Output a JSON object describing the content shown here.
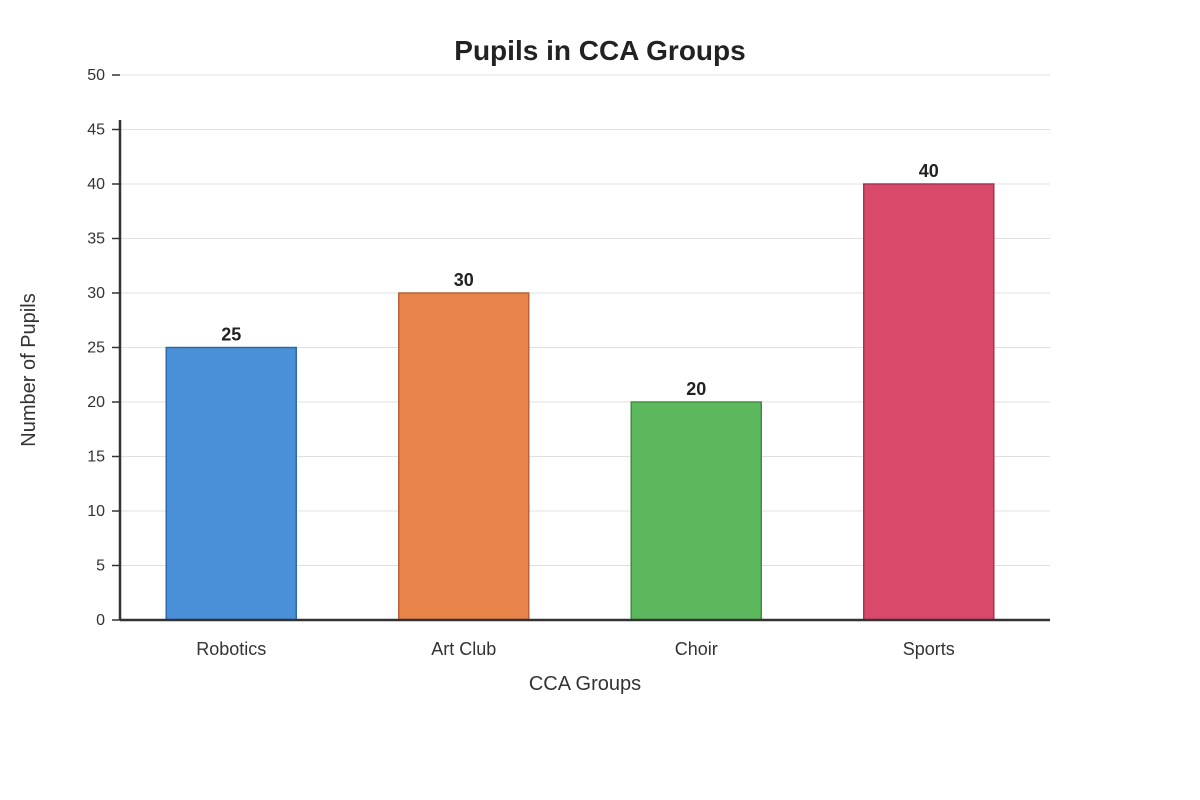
{
  "chart_data": {
    "type": "bar",
    "title": "Pupils in CCA Groups",
    "xlabel": "CCA Groups",
    "ylabel": "Number of Pupils",
    "categories": [
      "Robotics",
      "Art Club",
      "Choir",
      "Sports"
    ],
    "values": [
      25,
      30,
      20,
      40
    ],
    "data_labels": [
      "25",
      "30",
      "20",
      "40"
    ],
    "ylim": [
      0,
      50
    ],
    "yticks": [
      0,
      5,
      10,
      15,
      20,
      25,
      30,
      35,
      40,
      45,
      50
    ],
    "ytick_labels": [
      "0",
      "5",
      "10",
      "15",
      "20",
      "25",
      "30",
      "35",
      "40",
      "45",
      "50"
    ],
    "grid": true,
    "bar_colors": [
      "#4a90d9",
      "#e8844a",
      "#5cb85c",
      "#d9496a"
    ],
    "bar_border_colors": [
      "#2f6aa8",
      "#b5643a",
      "#3f8f3f",
      "#a8334f"
    ],
    "axis_color": "#333333",
    "grid_color": "#e0e0e0"
  }
}
